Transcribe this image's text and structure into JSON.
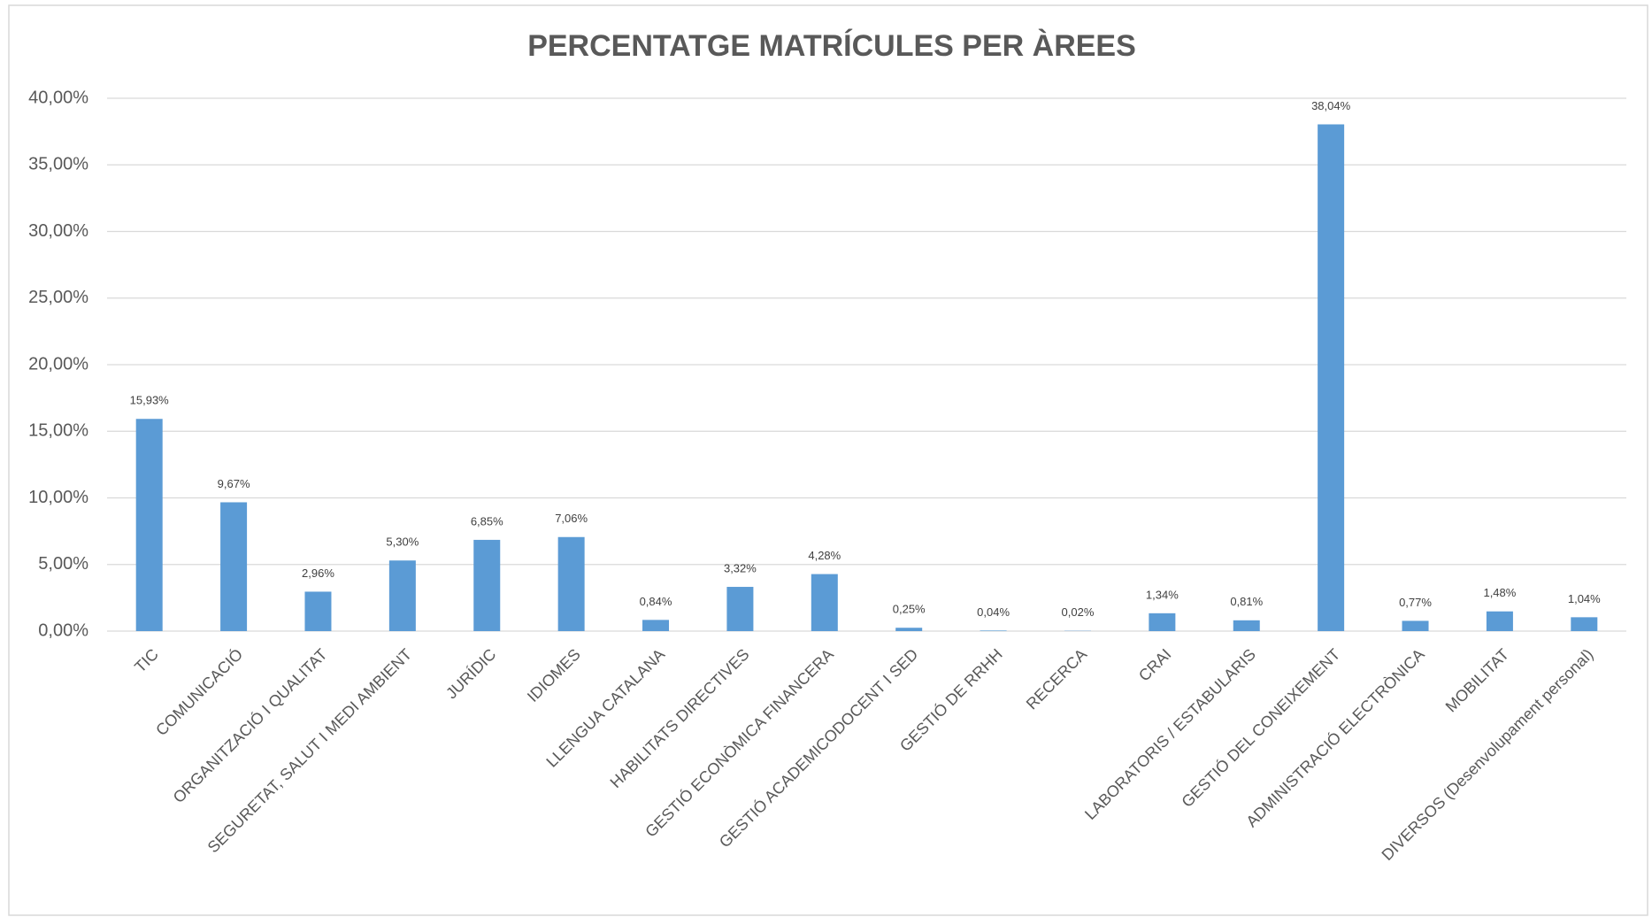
{
  "chart_data": {
    "type": "bar",
    "title": "PERCENTATGE MATRÍCULES PER ÀREES",
    "categories": [
      "TIC",
      "COMUNICACIÓ",
      "ORGANITZACIÓ I QUALITAT",
      "SEGURETAT, SALUT  I MEDI AMBIENT",
      "JURÍDIC",
      "IDIOMES",
      "LLENGUA CATALANA",
      "HABILITATS DIRECTIVES",
      "GESTIÓ ECONÒMICA FINANCERA",
      "GESTIÓ ACADEMICODOCENT I SED",
      "GESTIÓ DE RRHH",
      "RECERCA",
      "CRAI",
      "LABORATORIS / ESTABULARIS",
      "GESTIÓ DEL CONEIXEMENT",
      "ADMINISTRACIÓ ELECTRÒNICA",
      "MOBILITAT",
      "DIVERSOS (Desenvolupament personal)"
    ],
    "values": [
      15.93,
      9.67,
      2.96,
      5.3,
      6.85,
      7.06,
      0.84,
      3.32,
      4.28,
      0.25,
      0.04,
      0.02,
      1.34,
      0.81,
      38.04,
      0.77,
      1.48,
      1.04
    ],
    "value_labels": [
      "15,93%",
      "9,67%",
      "2,96%",
      "5,30%",
      "6,85%",
      "7,06%",
      "0,84%",
      "3,32%",
      "4,28%",
      "0,25%",
      "0,04%",
      "0,02%",
      "1,34%",
      "0,81%",
      "38,04%",
      "0,77%",
      "1,48%",
      "1,04%"
    ],
    "color": "#5b9bd5",
    "ylim": [
      0,
      40
    ],
    "yticks": [
      {
        "value": 0,
        "label": "0,00%"
      },
      {
        "value": 5,
        "label": "5,00%"
      },
      {
        "value": 10,
        "label": "10,00%"
      },
      {
        "value": 15,
        "label": "15,00%"
      },
      {
        "value": 20,
        "label": "20,00%"
      },
      {
        "value": 25,
        "label": "25,00%"
      },
      {
        "value": 30,
        "label": "30,00%"
      },
      {
        "value": 35,
        "label": "35,00%"
      },
      {
        "value": 40,
        "label": "40,00%"
      }
    ],
    "grid": true
  }
}
